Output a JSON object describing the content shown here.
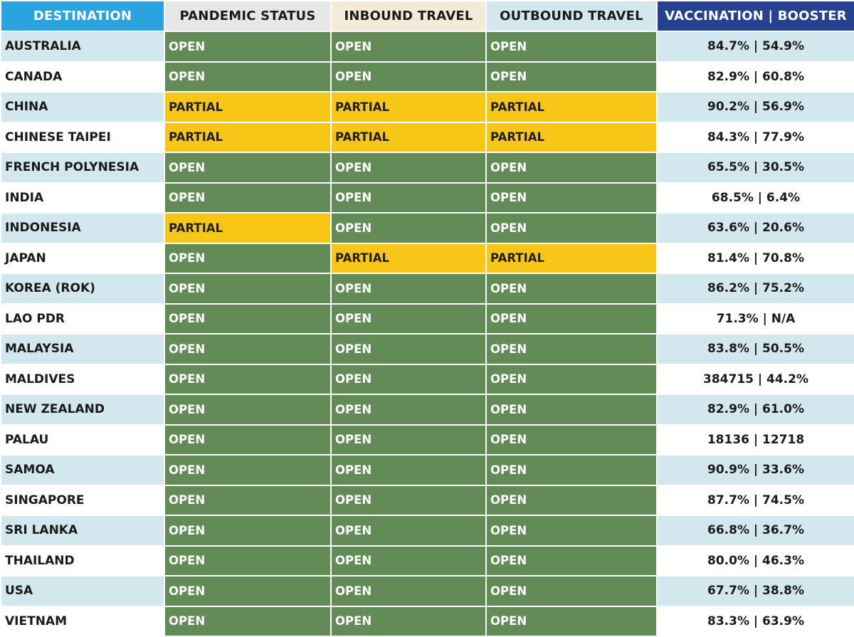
{
  "columns": {
    "destination": {
      "label": "DESTINATION",
      "bg": "#2aa3de",
      "color": "#ffffff"
    },
    "pandemic": {
      "label": "PANDEMIC STATUS",
      "bg": "#e7e7e7",
      "color": "#1a1a1a"
    },
    "inbound": {
      "label": "INBOUND TRAVEL",
      "bg": "#f3ead7",
      "color": "#1a1a1a"
    },
    "outbound": {
      "label": "OUTBOUND TRAVEL",
      "bg": "#d3e7ee",
      "color": "#1a1a1a"
    },
    "vaccination": {
      "label": "VACCINATION | BOOSTER",
      "bg": "#25418f",
      "color": "#ffffff"
    }
  },
  "status_colors": {
    "OPEN": "#638b57",
    "PARTIAL": "#f8c617"
  },
  "stripe_colors": [
    "#d3e7ee",
    "#ffffff"
  ],
  "rows": [
    {
      "destination": "AUSTRALIA",
      "pandemic": "OPEN",
      "inbound": "OPEN",
      "outbound": "OPEN",
      "vaccination": "84.7% | 54.9%"
    },
    {
      "destination": "CANADA",
      "pandemic": "OPEN",
      "inbound": "OPEN",
      "outbound": "OPEN",
      "vaccination": "82.9% | 60.8%"
    },
    {
      "destination": "CHINA",
      "pandemic": "PARTIAL",
      "inbound": "PARTIAL",
      "outbound": "PARTIAL",
      "vaccination": "90.2% | 56.9%"
    },
    {
      "destination": "CHINESE TAIPEI",
      "pandemic": "PARTIAL",
      "inbound": "PARTIAL",
      "outbound": "PARTIAL",
      "vaccination": "84.3% | 77.9%"
    },
    {
      "destination": "FRENCH POLYNESIA",
      "pandemic": "OPEN",
      "inbound": "OPEN",
      "outbound": "OPEN",
      "vaccination": "65.5% | 30.5%"
    },
    {
      "destination": "INDIA",
      "pandemic": "OPEN",
      "inbound": "OPEN",
      "outbound": "OPEN",
      "vaccination": "68.5% | 6.4%"
    },
    {
      "destination": "INDONESIA",
      "pandemic": "PARTIAL",
      "inbound": "OPEN",
      "outbound": "OPEN",
      "vaccination": "63.6% | 20.6%"
    },
    {
      "destination": "JAPAN",
      "pandemic": "OPEN",
      "inbound": "PARTIAL",
      "outbound": "PARTIAL",
      "vaccination": "81.4% | 70.8%"
    },
    {
      "destination": "KOREA (ROK)",
      "pandemic": "OPEN",
      "inbound": "OPEN",
      "outbound": "OPEN",
      "vaccination": "86.2% | 75.2%"
    },
    {
      "destination": "LAO PDR",
      "pandemic": "OPEN",
      "inbound": "OPEN",
      "outbound": "OPEN",
      "vaccination": "71.3% | N/A"
    },
    {
      "destination": "MALAYSIA",
      "pandemic": "OPEN",
      "inbound": "OPEN",
      "outbound": "OPEN",
      "vaccination": "83.8% | 50.5%"
    },
    {
      "destination": "MALDIVES",
      "pandemic": "OPEN",
      "inbound": "OPEN",
      "outbound": "OPEN",
      "vaccination": "384715 | 44.2%"
    },
    {
      "destination": "NEW ZEALAND",
      "pandemic": "OPEN",
      "inbound": "OPEN",
      "outbound": "OPEN",
      "vaccination": "82.9% | 61.0%"
    },
    {
      "destination": "PALAU",
      "pandemic": "OPEN",
      "inbound": "OPEN",
      "outbound": "OPEN",
      "vaccination": "18136 | 12718"
    },
    {
      "destination": "SAMOA",
      "pandemic": "OPEN",
      "inbound": "OPEN",
      "outbound": "OPEN",
      "vaccination": "90.9% | 33.6%"
    },
    {
      "destination": "SINGAPORE",
      "pandemic": "OPEN",
      "inbound": "OPEN",
      "outbound": "OPEN",
      "vaccination": "87.7% | 74.5%"
    },
    {
      "destination": "SRI LANKA",
      "pandemic": "OPEN",
      "inbound": "OPEN",
      "outbound": "OPEN",
      "vaccination": "66.8% | 36.7%"
    },
    {
      "destination": "THAILAND",
      "pandemic": "OPEN",
      "inbound": "OPEN",
      "outbound": "OPEN",
      "vaccination": "80.0% | 46.3%"
    },
    {
      "destination": "USA",
      "pandemic": "OPEN",
      "inbound": "OPEN",
      "outbound": "OPEN",
      "vaccination": "67.7% | 38.8%"
    },
    {
      "destination": "VIETNAM",
      "pandemic": "OPEN",
      "inbound": "OPEN",
      "outbound": "OPEN",
      "vaccination": "83.3% | 63.9%"
    }
  ]
}
